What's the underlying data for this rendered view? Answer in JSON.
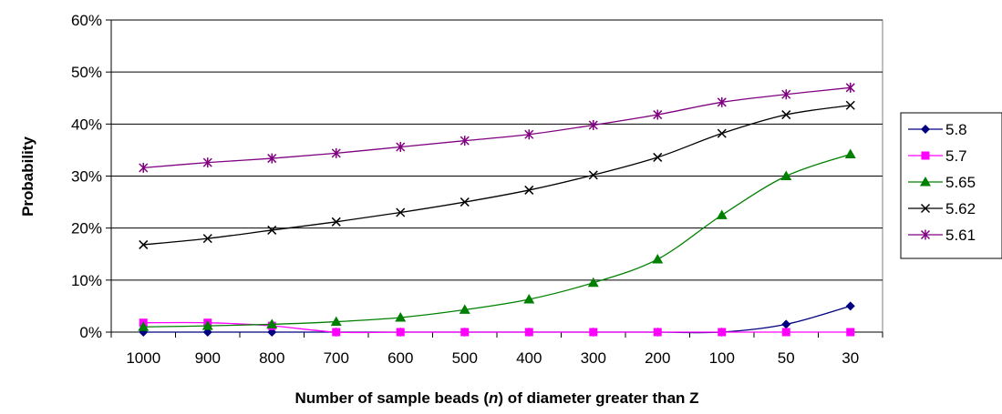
{
  "chart_data": {
    "type": "line",
    "title": "",
    "xlabel_parts": [
      "Number of sample beads (",
      "n",
      ") of diameter greater than Z"
    ],
    "ylabel": "Probability",
    "categories": [
      "1000",
      "900",
      "800",
      "700",
      "600",
      "500",
      "400",
      "300",
      "200",
      "100",
      "50",
      "30"
    ],
    "ylim": [
      0,
      0.6
    ],
    "yticks": [
      {
        "value": 0,
        "label": "0%"
      },
      {
        "value": 0.1,
        "label": "10%"
      },
      {
        "value": 0.2,
        "label": "20%"
      },
      {
        "value": 0.3,
        "label": "30%"
      },
      {
        "value": 0.4,
        "label": "40%"
      },
      {
        "value": 0.5,
        "label": "50%"
      },
      {
        "value": 0.6,
        "label": "60%"
      }
    ],
    "grid": "horizontal",
    "legend_position": "right",
    "series": [
      {
        "name": "5.8",
        "color": "#000080",
        "marker": "diamond",
        "values": [
          0.0,
          0.0,
          0.0,
          0.0,
          0.0,
          0.0,
          0.0,
          0.0,
          0.0,
          0.0,
          0.015,
          0.05
        ]
      },
      {
        "name": "5.7",
        "color": "#ff00ff",
        "marker": "square",
        "values": [
          0.018,
          0.018,
          0.012,
          0.0,
          0.0,
          0.0,
          0.0,
          0.0,
          0.0,
          0.0,
          0.0,
          0.0
        ]
      },
      {
        "name": "5.65",
        "color": "#008000",
        "marker": "triangle",
        "values": [
          0.01,
          0.012,
          0.015,
          0.02,
          0.028,
          0.043,
          0.063,
          0.095,
          0.14,
          0.225,
          0.3,
          0.342
        ]
      },
      {
        "name": "5.62",
        "color": "#000000",
        "marker": "x",
        "values": [
          0.168,
          0.18,
          0.196,
          0.212,
          0.23,
          0.25,
          0.273,
          0.302,
          0.336,
          0.382,
          0.418,
          0.436
        ]
      },
      {
        "name": "5.61",
        "color": "#800080",
        "marker": "star",
        "values": [
          0.316,
          0.326,
          0.334,
          0.344,
          0.356,
          0.368,
          0.38,
          0.398,
          0.418,
          0.442,
          0.457,
          0.47
        ]
      }
    ]
  }
}
